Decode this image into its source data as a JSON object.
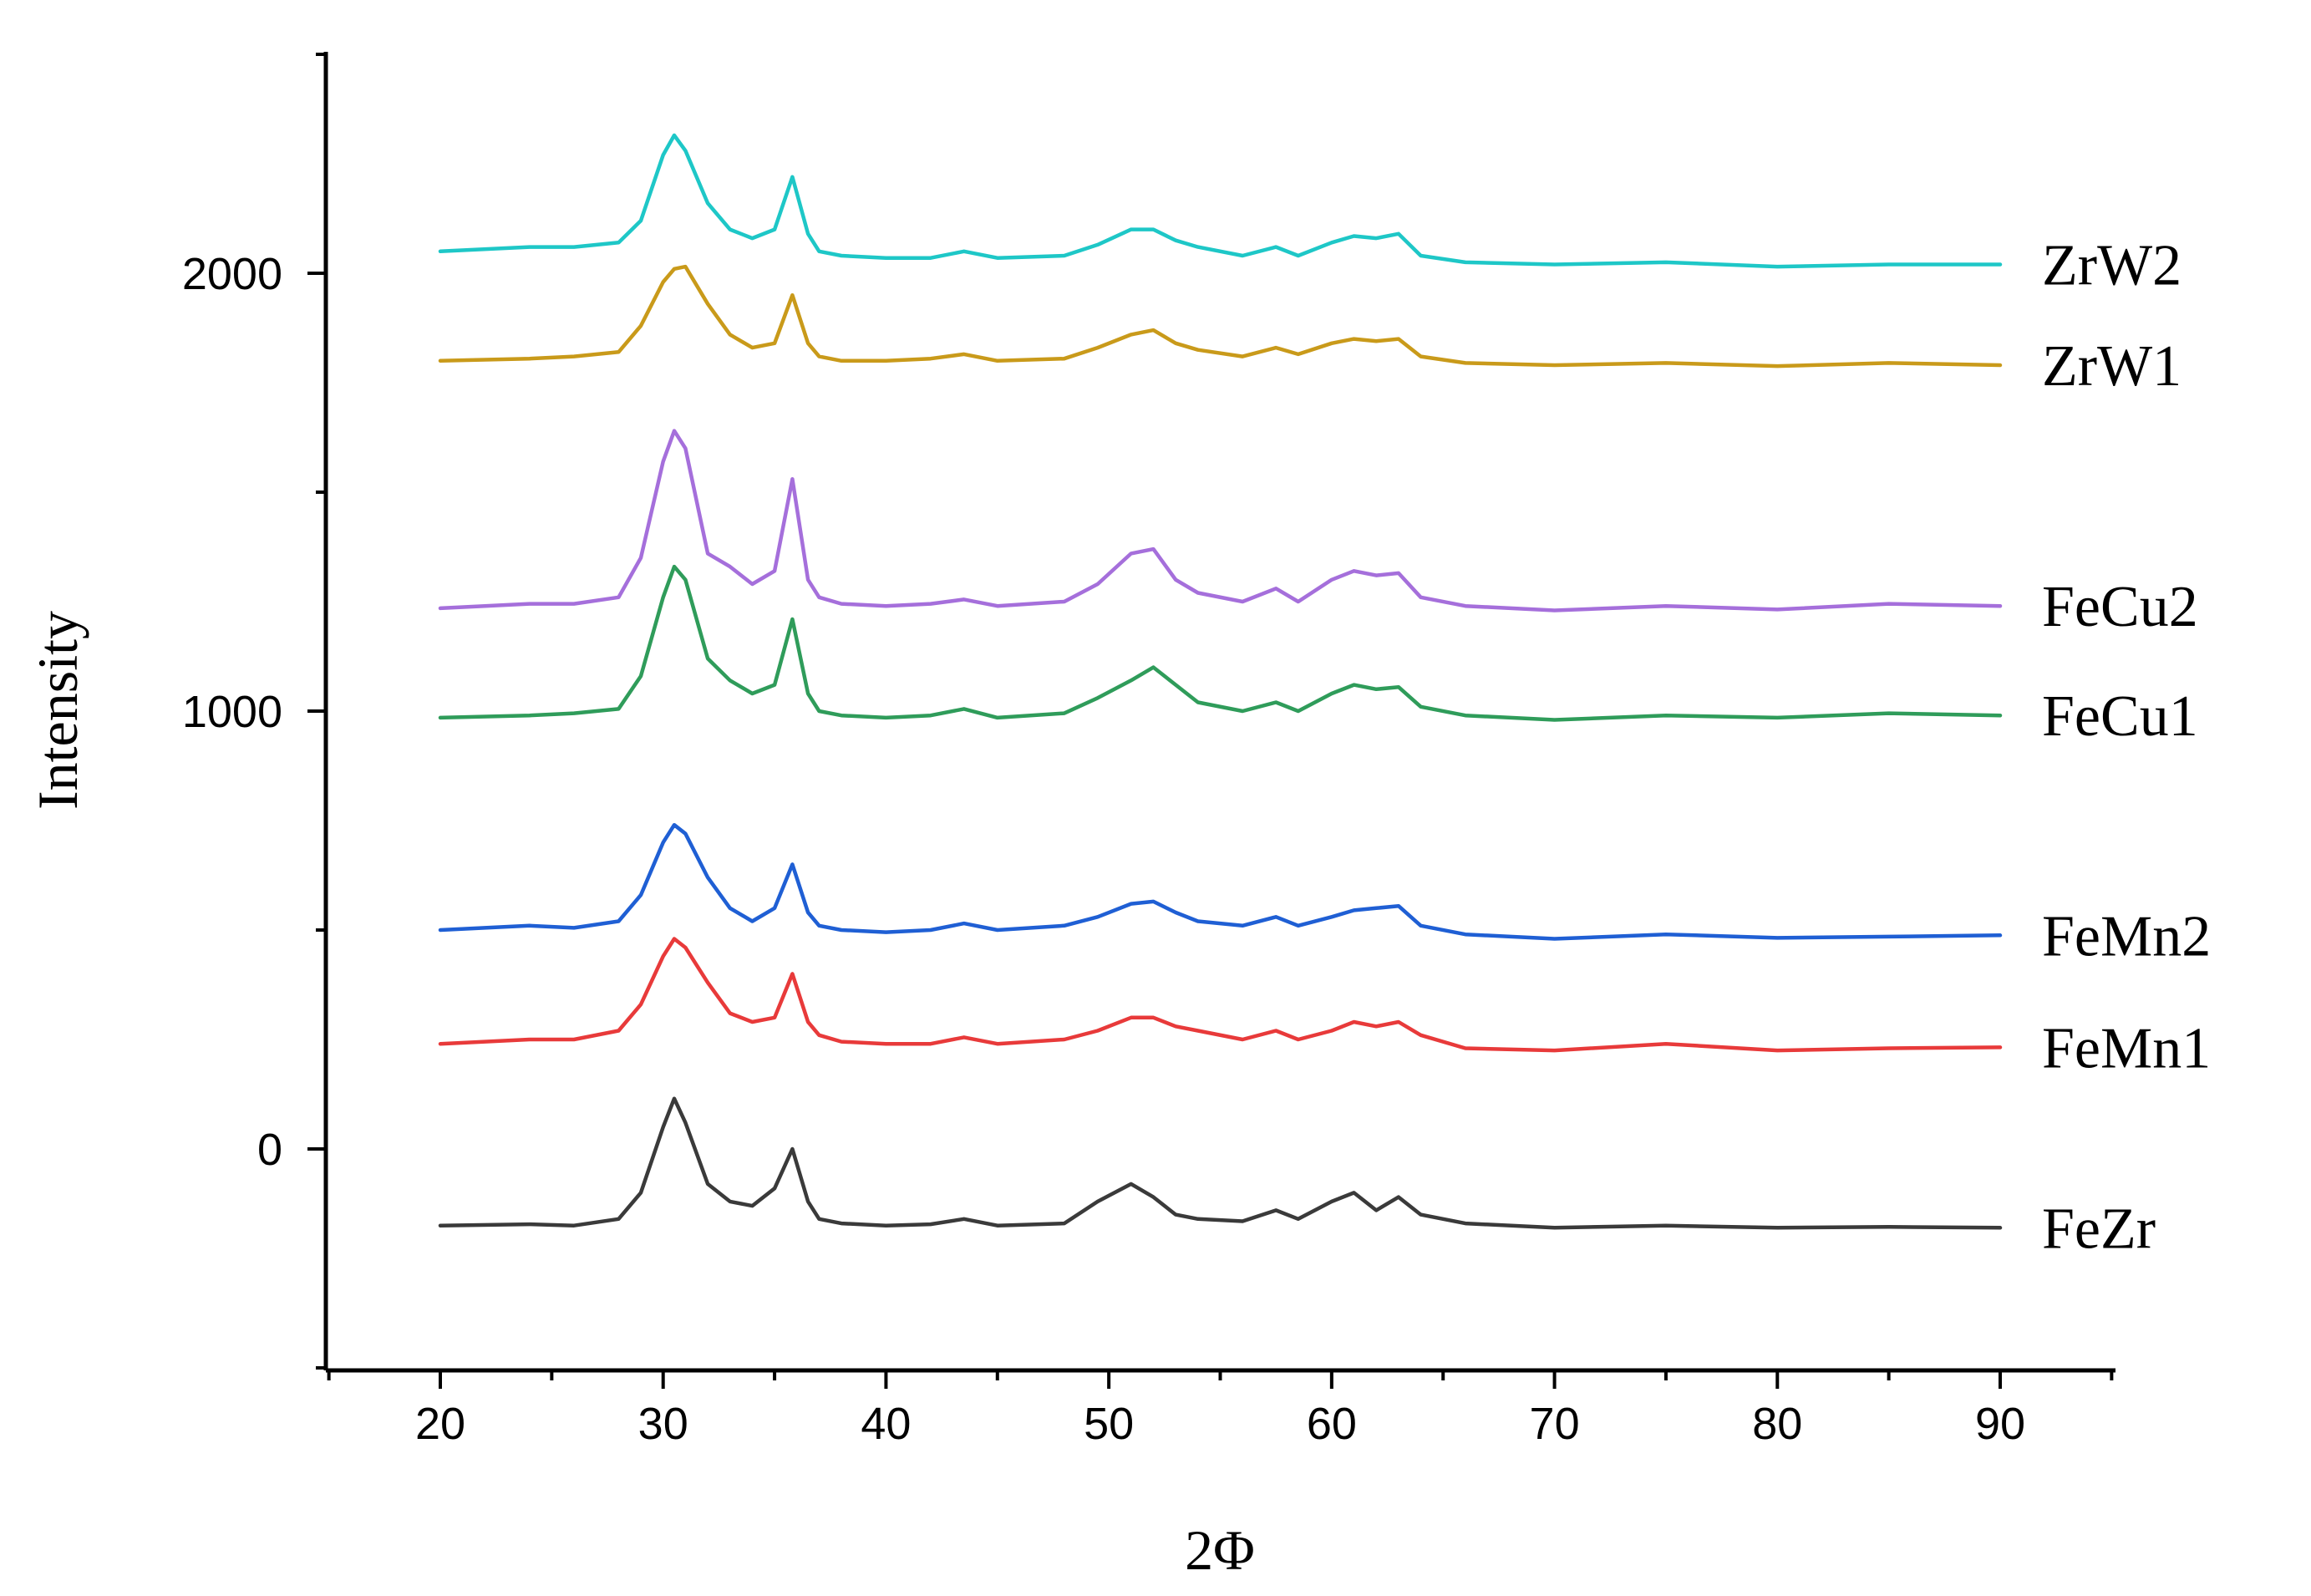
{
  "chart_data": {
    "type": "line",
    "title": "",
    "xlabel": "2Φ",
    "ylabel": "Intensity",
    "xlim": [
      15,
      95
    ],
    "ylim": [
      -500,
      2500
    ],
    "x_ticks": [
      20,
      30,
      40,
      50,
      60,
      70,
      80,
      90
    ],
    "x_tick_labels": [
      "20",
      "30",
      "40",
      "50",
      "60",
      "70",
      "80",
      "90"
    ],
    "y_ticks": [
      0,
      1000,
      2000
    ],
    "y_tick_labels": [
      "0",
      "1000",
      "2000"
    ],
    "grid": false,
    "legend": "labels at right end of each curve",
    "x": [
      20,
      24,
      26,
      28,
      29,
      30,
      30.5,
      31,
      32,
      33,
      34,
      35,
      35.8,
      36.5,
      37,
      38,
      40,
      42,
      43.5,
      45,
      48,
      49.5,
      51,
      52,
      53,
      54,
      56,
      57.5,
      58.5,
      60,
      61,
      62,
      63,
      64,
      66,
      70,
      75,
      80,
      85,
      90
    ],
    "series": [
      {
        "name": "FeZr",
        "color": "#3a3a3a",
        "values": [
          -175,
          -172,
          -175,
          -160,
          -100,
          50,
          115,
          60,
          -80,
          -120,
          -130,
          -90,
          0,
          -120,
          -160,
          -170,
          -175,
          -172,
          -160,
          -175,
          -170,
          -120,
          -80,
          -110,
          -150,
          -160,
          -165,
          -140,
          -160,
          -120,
          -100,
          -140,
          -110,
          -150,
          -170,
          -180,
          -175,
          -180,
          -178,
          -180
        ]
      },
      {
        "name": "FeMn1",
        "color": "#e83a3a",
        "values": [
          240,
          250,
          250,
          270,
          330,
          440,
          480,
          460,
          380,
          310,
          290,
          300,
          400,
          290,
          260,
          245,
          240,
          240,
          255,
          240,
          250,
          270,
          300,
          300,
          280,
          270,
          250,
          270,
          250,
          270,
          290,
          280,
          290,
          260,
          230,
          225,
          240,
          225,
          230,
          232
        ]
      },
      {
        "name": "FeMn2",
        "color": "#1f5fd4",
        "values": [
          500,
          510,
          505,
          520,
          580,
          700,
          740,
          720,
          620,
          550,
          520,
          550,
          650,
          540,
          510,
          500,
          495,
          500,
          515,
          500,
          510,
          530,
          560,
          565,
          540,
          520,
          510,
          530,
          510,
          530,
          545,
          550,
          555,
          510,
          490,
          480,
          490,
          482,
          485,
          488
        ]
      },
      {
        "name": "FeCu1",
        "color": "#2f9c5a",
        "values": [
          985,
          990,
          995,
          1005,
          1080,
          1260,
          1330,
          1300,
          1120,
          1070,
          1040,
          1060,
          1210,
          1040,
          1000,
          990,
          985,
          990,
          1005,
          985,
          995,
          1030,
          1070,
          1100,
          1060,
          1020,
          1000,
          1020,
          1000,
          1040,
          1060,
          1050,
          1055,
          1010,
          990,
          980,
          990,
          985,
          995,
          990
        ]
      },
      {
        "name": "FeCu2",
        "color": "#a56fdb",
        "values": [
          1235,
          1245,
          1245,
          1260,
          1350,
          1570,
          1640,
          1600,
          1360,
          1330,
          1290,
          1320,
          1530,
          1300,
          1260,
          1245,
          1240,
          1245,
          1255,
          1240,
          1250,
          1290,
          1360,
          1370,
          1300,
          1270,
          1250,
          1280,
          1250,
          1300,
          1320,
          1310,
          1315,
          1260,
          1240,
          1230,
          1240,
          1232,
          1245,
          1240
        ]
      },
      {
        "name": "ZrW1",
        "color": "#c99a1a",
        "values": [
          1800,
          1805,
          1810,
          1820,
          1880,
          1980,
          2010,
          2015,
          1930,
          1860,
          1830,
          1840,
          1950,
          1840,
          1810,
          1800,
          1800,
          1805,
          1815,
          1800,
          1805,
          1830,
          1860,
          1870,
          1840,
          1825,
          1810,
          1830,
          1815,
          1840,
          1850,
          1845,
          1850,
          1810,
          1795,
          1790,
          1795,
          1788,
          1795,
          1790
        ]
      },
      {
        "name": "ZrW2",
        "color": "#1ec7c7",
        "values": [
          2050,
          2060,
          2060,
          2070,
          2120,
          2270,
          2315,
          2280,
          2160,
          2100,
          2080,
          2100,
          2220,
          2090,
          2050,
          2040,
          2035,
          2035,
          2050,
          2035,
          2040,
          2065,
          2100,
          2100,
          2075,
          2060,
          2040,
          2060,
          2040,
          2070,
          2085,
          2080,
          2090,
          2040,
          2025,
          2020,
          2025,
          2015,
          2020,
          2020
        ]
      }
    ]
  }
}
